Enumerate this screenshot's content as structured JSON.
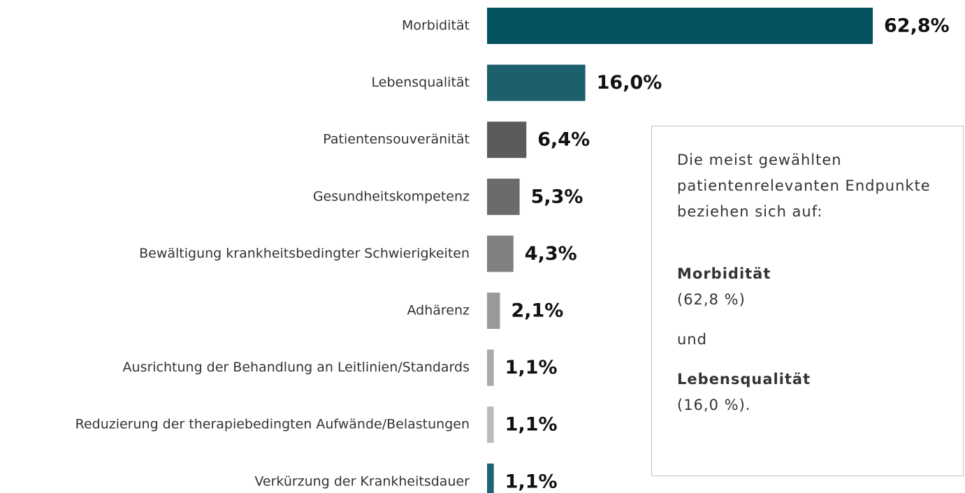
{
  "chart_data": {
    "type": "barh",
    "categories": [
      "Morbidität",
      "Lebensqualität",
      "Patientensouveränität",
      "Gesundheitskompetenz",
      "Bewältigung krankheitsbedingter Schwierigkeiten",
      "Adhärenz",
      "Ausrichtung der Behandlung an Leitlinien/Standards",
      "Reduzierung der therapiebedingten Aufwände/Belastungen",
      "Verkürzung der Krankheitsdauer"
    ],
    "values": [
      62.8,
      16.0,
      6.4,
      5.3,
      4.3,
      2.1,
      1.1,
      1.1,
      1.1
    ],
    "value_labels": [
      "62,8%",
      "16,0%",
      "6,4%",
      "5,3%",
      "4,3%",
      "2,1%",
      "1,1%",
      "1,1%",
      "1,1%"
    ],
    "colors": [
      "#04525f",
      "#1c5f6d",
      "#5b5b5b",
      "#6b6b6b",
      "#808080",
      "#999999",
      "#aaaaaa",
      "#bbbbbb",
      "#1f6474"
    ],
    "annotation": {
      "intro": "Die meist gewählten patientenrelevanten Endpunkte beziehen sich auf:",
      "item1": "Morbidität",
      "item1_value": "(62,8 %)",
      "connector": "und",
      "item2": "Lebensqualität",
      "item2_value": "(16,0 %)."
    }
  }
}
